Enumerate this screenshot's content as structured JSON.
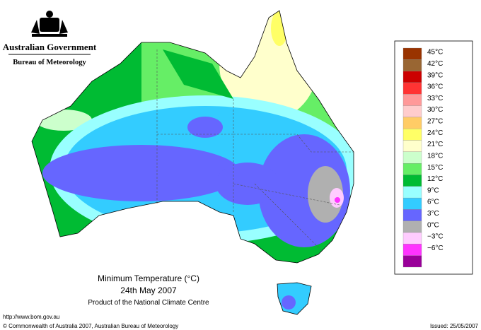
{
  "header": {
    "government": "Australian Government",
    "bureau": "Bureau of Meteorology"
  },
  "map": {
    "title": "Minimum Temperature (°C)",
    "date": "24th May 2007",
    "product": "Product of the National Climate Centre"
  },
  "legend": {
    "labels": [
      "45°C",
      "42°C",
      "39°C",
      "36°C",
      "33°C",
      "30°C",
      "27°C",
      "24°C",
      "21°C",
      "18°C",
      "15°C",
      "12°C",
      "9°C",
      "6°C",
      "3°C",
      "0°C",
      "−3°C",
      "−6°C"
    ],
    "colors": [
      "#993300",
      "#996633",
      "#cc0000",
      "#ff3333",
      "#ff9999",
      "#ffcccc",
      "#ffcc66",
      "#ffff66",
      "#ffffcc",
      "#ccffcc",
      "#66ee66",
      "#00bb33",
      "#99ffff",
      "#33ccff",
      "#6666ff",
      "#b0b0b0",
      "#ffccff",
      "#ff33ff",
      "#990099"
    ]
  },
  "footer": {
    "url": "http://www.bom.gov.au",
    "copyright": "© Commonwealth of Australia 2007, Australian Bureau of Meteorology",
    "issued": "Issued: 25/05/2007"
  }
}
